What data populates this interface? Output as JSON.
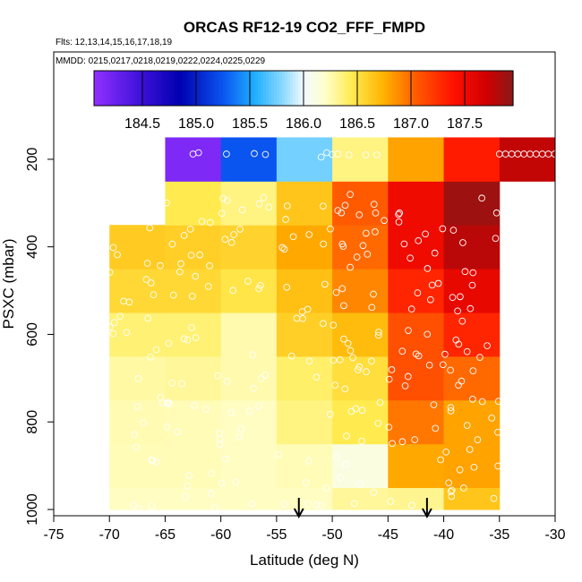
{
  "chart_data": {
    "type": "heatmap",
    "title": "ORCAS RF12-19 CO2_FFF_FMPD",
    "subtitle_flights": "Flts: 12,13,14,15,16,17,18,19",
    "subtitle_dates": "MMDD: 0215,0217,0218,0219,0222,0224,0225,0229",
    "xlabel": "Latitude (deg N)",
    "ylabel": "PSXC (mbar)",
    "xlim": [
      -75,
      -30
    ],
    "ylim": [
      1000,
      100
    ],
    "x_ticks": [
      -75,
      -70,
      -65,
      -60,
      -55,
      -50,
      -45,
      -40,
      -35,
      -30
    ],
    "y_ticks": [
      200,
      400,
      600,
      800,
      1000
    ],
    "colorbar": {
      "range": [
        184.05,
        187.95
      ],
      "ticks": [
        184.5,
        185.0,
        185.5,
        186.0,
        186.5,
        187.0,
        187.5
      ],
      "stops": [
        {
          "v": 184.05,
          "c": "#9130ff"
        },
        {
          "v": 184.5,
          "c": "#3b10d8"
        },
        {
          "v": 184.85,
          "c": "#0000b0"
        },
        {
          "v": 185.25,
          "c": "#0a55f0"
        },
        {
          "v": 185.55,
          "c": "#20b0ff"
        },
        {
          "v": 185.8,
          "c": "#88d8ff"
        },
        {
          "v": 186.0,
          "c": "#f2faff"
        },
        {
          "v": 186.2,
          "c": "#ffffcc"
        },
        {
          "v": 186.45,
          "c": "#ffeb50"
        },
        {
          "v": 186.75,
          "c": "#ffb200"
        },
        {
          "v": 187.05,
          "c": "#ff5a00"
        },
        {
          "v": 187.4,
          "c": "#ff1000"
        },
        {
          "v": 187.7,
          "c": "#d00000"
        },
        {
          "v": 187.95,
          "c": "#8a1818"
        }
      ]
    },
    "x_edges": [
      -70,
      -65,
      -60,
      -55,
      -50,
      -45,
      -40,
      -35,
      -30
    ],
    "y_edges": [
      1000,
      950,
      850,
      750,
      650,
      550,
      450,
      350,
      250,
      150
    ],
    "grid_values": [
      [
        186.22,
        186.22,
        186.22,
        186.22,
        186.3,
        186.32,
        186.65
      ],
      [
        186.24,
        186.24,
        186.22,
        186.24,
        186.12,
        186.78,
        186.8
      ],
      [
        186.25,
        186.24,
        186.22,
        186.35,
        186.45,
        186.95,
        186.8
      ],
      [
        186.28,
        186.3,
        186.26,
        186.4,
        186.52,
        187.1,
        187.0
      ],
      [
        186.38,
        186.38,
        186.26,
        186.6,
        186.7,
        187.1,
        187.3
      ],
      [
        186.55,
        186.55,
        186.48,
        186.68,
        186.9,
        187.3,
        187.55
      ],
      [
        186.62,
        186.6,
        186.58,
        186.78,
        187.0,
        187.5,
        187.78
      ],
      [
        null,
        186.45,
        186.35,
        186.65,
        187.05,
        187.5,
        187.88
      ],
      [
        null,
        184.15,
        185.25,
        185.75,
        186.35,
        186.8,
        187.35,
        187.75
      ]
    ],
    "grid_note": "row i spans y_edges[i]..y_edges[i+1]; rows 0-7 begin at x=-70 (first column marked null begins at x=-65), row 8 spans x=-65..-30",
    "arrows_latitude": [
      -53,
      -41.5
    ],
    "arrows_pressure": [
      1000
    ]
  }
}
